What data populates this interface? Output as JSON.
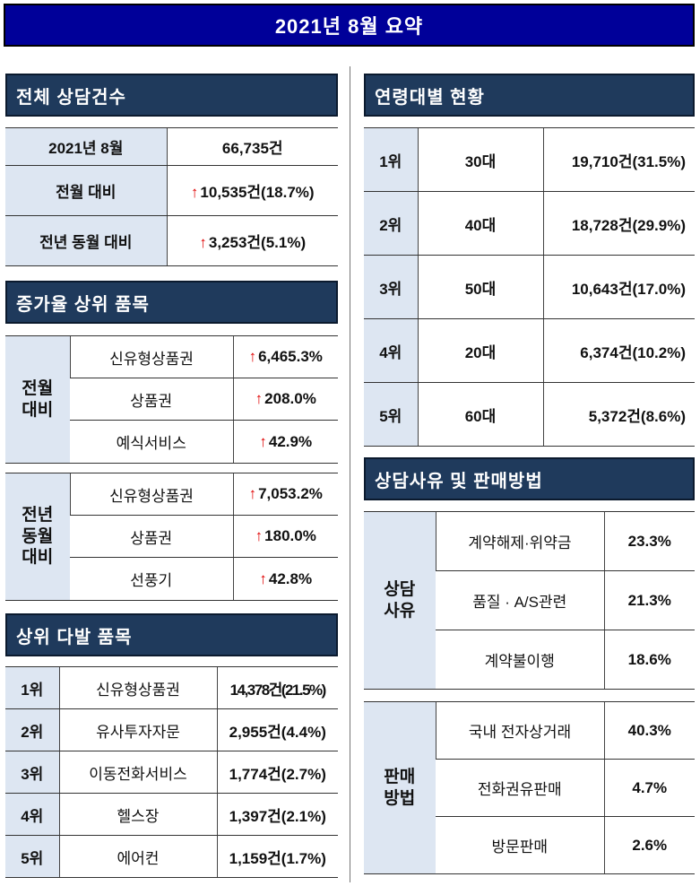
{
  "banner": "2021년 8월 요약",
  "total": {
    "title": "전체 상담건수",
    "rows": [
      {
        "label": "2021년 8월",
        "value": "66,735건",
        "up": false
      },
      {
        "label": "전월 대비",
        "value": "10,535건(18.7%)",
        "up": true
      },
      {
        "label": "전년 동월 대비",
        "value": "3,253건(5.1%)",
        "up": true
      }
    ]
  },
  "increase": {
    "title": "증가율 상위 품목",
    "groups": [
      {
        "label": "전월\n대비",
        "items": [
          {
            "name": "신유형상품권",
            "value": "6,465.3%"
          },
          {
            "name": "상품권",
            "value": "208.0%"
          },
          {
            "name": "예식서비스",
            "value": "42.9%"
          }
        ]
      },
      {
        "label": "전년\n동월\n대비",
        "items": [
          {
            "name": "신유형상품권",
            "value": "7,053.2%"
          },
          {
            "name": "상품권",
            "value": "180.0%"
          },
          {
            "name": "선풍기",
            "value": "42.8%"
          }
        ]
      }
    ]
  },
  "frequent": {
    "title": "상위 다발 품목",
    "rows": [
      {
        "rank": "1위",
        "name": "신유형상품권",
        "value": "14,378건(21.5%)"
      },
      {
        "rank": "2위",
        "name": "유사투자자문",
        "value": "2,955건(4.4%)"
      },
      {
        "rank": "3위",
        "name": "이동전화서비스",
        "value": "1,774건(2.7%)"
      },
      {
        "rank": "4위",
        "name": "헬스장",
        "value": "1,397건(2.1%)"
      },
      {
        "rank": "5위",
        "name": "에어컨",
        "value": "1,159건(1.7%)"
      }
    ]
  },
  "age": {
    "title": "연령대별 현황",
    "rows": [
      {
        "rank": "1위",
        "age": "30대",
        "value": "19,710건(31.5%)"
      },
      {
        "rank": "2위",
        "age": "40대",
        "value": "18,728건(29.9%)"
      },
      {
        "rank": "3위",
        "age": "50대",
        "value": "10,643건(17.0%)"
      },
      {
        "rank": "4위",
        "age": "20대",
        "value": "6,374건(10.2%)"
      },
      {
        "rank": "5위",
        "age": "60대",
        "value": "5,372건(8.6%)"
      }
    ]
  },
  "reason": {
    "title": "상담사유 및 판매방법",
    "groups": [
      {
        "label": "상담\n사유",
        "items": [
          {
            "name": "계약해제·위약금",
            "value": "23.3%"
          },
          {
            "name": "품질 · A/S관련",
            "value": "21.3%"
          },
          {
            "name": "계약불이행",
            "value": "18.6%"
          }
        ]
      },
      {
        "label": "판매\n방법",
        "items": [
          {
            "name": "국내 전자상거래",
            "value": "40.3%"
          },
          {
            "name": "전화권유판매",
            "value": "4.7%"
          },
          {
            "name": "방문판매",
            "value": "2.6%"
          }
        ]
      }
    ]
  }
}
